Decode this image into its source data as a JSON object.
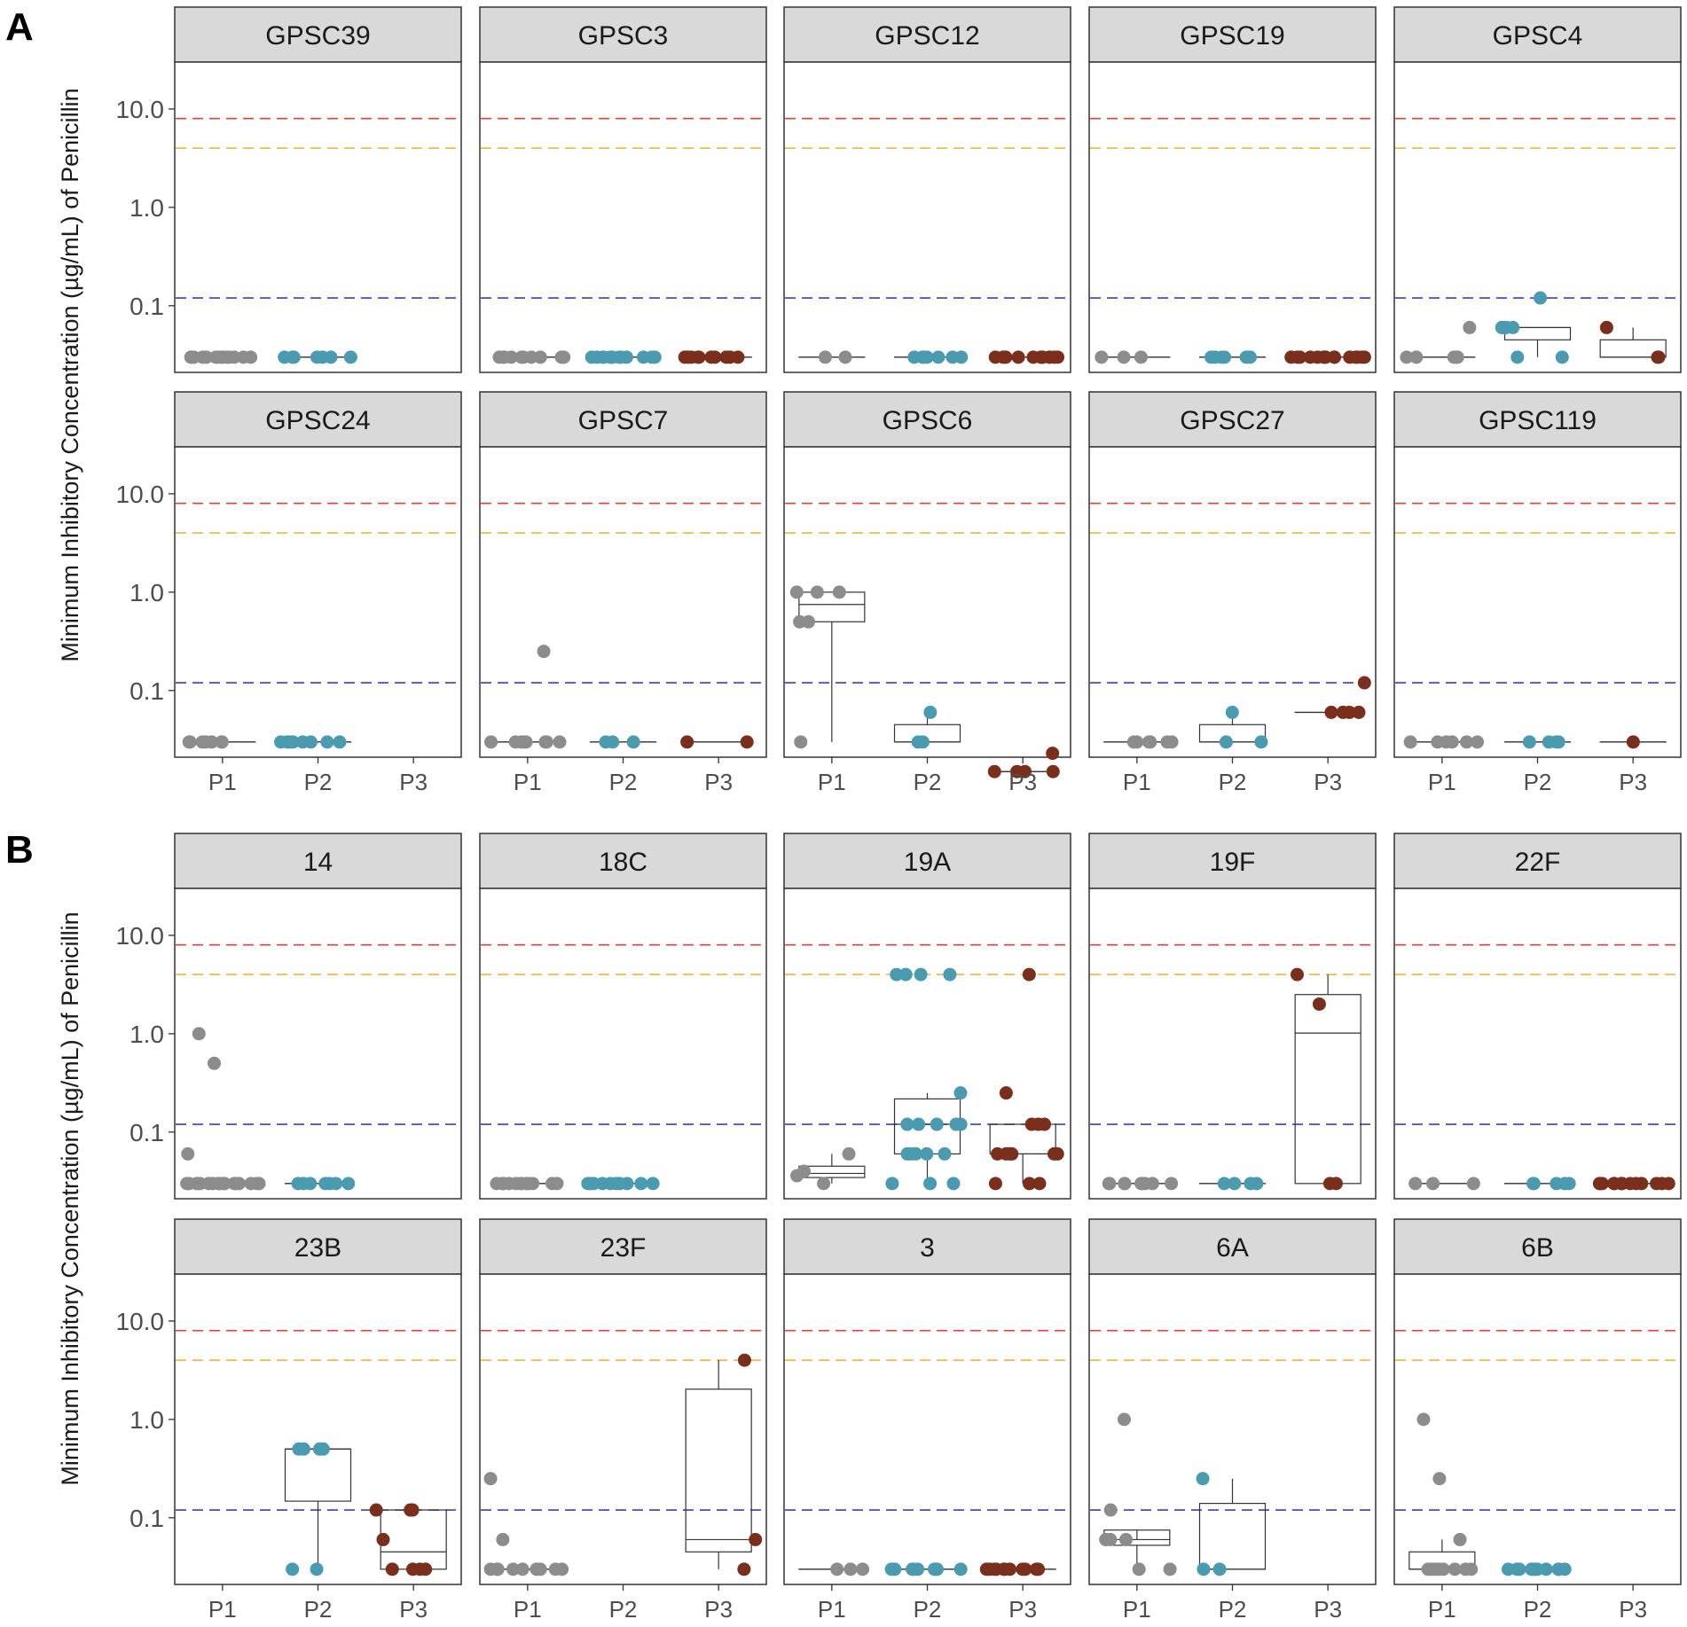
{
  "chart_data": {
    "type": "boxplot-faceted",
    "ylabel": "Minimum Inhibitory Concentration (µg/mL) of Penicillin",
    "yscale": "log10",
    "ylim": [
      0.021,
      30
    ],
    "y_ticks": [
      0.1,
      1.0,
      10.0
    ],
    "y_tick_labels": [
      "0.1",
      "1.0",
      "10.0"
    ],
    "x_categories": [
      "P1",
      "P2",
      "P3"
    ],
    "colors": {
      "P1": "#8c8c8c",
      "P2": "#4a9bb0",
      "P3": "#7a2e1c"
    },
    "reference_lines": [
      {
        "value": 8,
        "color": "#e0413a"
      },
      {
        "value": 4,
        "color": "#f0b43a"
      },
      {
        "value": 0.12,
        "color": "#3b3bc4"
      }
    ],
    "sections": [
      {
        "label": "A",
        "panels": [
          {
            "title": "GPSC39",
            "groups": {
              "P1": [
                0.03,
                0.03,
                0.03,
                0.03,
                0.03,
                0.03,
                0.03,
                0.03,
                0.03,
                0.03,
                0.03,
                0.03,
                0.03,
                0.03,
                0.03,
                0.03
              ],
              "P2": [
                0.03,
                0.03,
                0.03,
                0.03,
                0.03,
                0.03,
                0.03
              ],
              "P3": []
            }
          },
          {
            "title": "GPSC3",
            "groups": {
              "P1": [
                0.03,
                0.03,
                0.03,
                0.03,
                0.03,
                0.03,
                0.03,
                0.03,
                0.03,
                0.03,
                0.03
              ],
              "P2": [
                0.03,
                0.03,
                0.03,
                0.03,
                0.03,
                0.03,
                0.03,
                0.03,
                0.03,
                0.03,
                0.03,
                0.03,
                0.03
              ],
              "P3": [
                0.03,
                0.03,
                0.03,
                0.03,
                0.03,
                0.03,
                0.03,
                0.03,
                0.03,
                0.03
              ]
            }
          },
          {
            "title": "GPSC12",
            "groups": {
              "P1": [
                0.03,
                0.03
              ],
              "P2": [
                0.03,
                0.03,
                0.03,
                0.03,
                0.03,
                0.03,
                0.03,
                0.03
              ],
              "P3": [
                0.03,
                0.03,
                0.03,
                0.03,
                0.03,
                0.03,
                0.03,
                0.03,
                0.03,
                0.03,
                0.03,
                0.03,
                0.03
              ]
            }
          },
          {
            "title": "GPSC19",
            "groups": {
              "P1": [
                0.03,
                0.03,
                0.03
              ],
              "P2": [
                0.03,
                0.03,
                0.03,
                0.03,
                0.03,
                0.03
              ],
              "P3": [
                0.03,
                0.03,
                0.03,
                0.03,
                0.03,
                0.03,
                0.03,
                0.03,
                0.03,
                0.03,
                0.03,
                0.03,
                0.03,
                0.03,
                0.03
              ]
            }
          },
          {
            "title": "GPSC4",
            "groups": {
              "P1": [
                0.03,
                0.03,
                0.03,
                0.03,
                0.03,
                0.06
              ],
              "P2": [
                0.03,
                0.03,
                0.06,
                0.06,
                0.06,
                0.06,
                0.12
              ],
              "P3": [
                0.03,
                0.03,
                0.06
              ]
            }
          }
        ]
      },
      {
        "label": "",
        "panels": [
          {
            "title": "GPSC24",
            "groups": {
              "P1": [
                0.03,
                0.03,
                0.03,
                0.03,
                0.03,
                0.03,
                0.03
              ],
              "P2": [
                0.03,
                0.03,
                0.03,
                0.03,
                0.03,
                0.03,
                0.03,
                0.03,
                0.03
              ],
              "P3": []
            }
          },
          {
            "title": "GPSC7",
            "groups": {
              "P1": [
                0.03,
                0.03,
                0.03,
                0.03,
                0.03,
                0.03,
                0.03,
                0.03,
                0.25
              ],
              "P2": [
                0.03,
                0.03,
                0.03
              ],
              "P3": [
                0.03,
                0.03
              ]
            }
          },
          {
            "title": "GPSC6",
            "groups": {
              "P1": [
                0.03,
                0.5,
                0.5,
                1.0,
                1.0,
                1.0
              ],
              "P2": [
                0.03,
                0.03,
                0.06
              ],
              "P3": [
                0.015,
                0.015,
                0.015,
                0.015,
                0.023
              ]
            }
          },
          {
            "title": "GPSC27",
            "groups": {
              "P1": [
                0.03,
                0.03,
                0.03,
                0.03,
                0.03,
                0.03
              ],
              "P2": [
                0.03,
                0.03,
                0.06
              ],
              "P3": [
                0.06,
                0.06,
                0.06,
                0.06,
                0.12
              ]
            }
          },
          {
            "title": "GPSC119",
            "groups": {
              "P1": [
                0.03,
                0.03,
                0.03,
                0.03,
                0.03,
                0.03
              ],
              "P2": [
                0.03,
                0.03,
                0.03,
                0.03
              ],
              "P3": [
                0.03
              ]
            }
          }
        ]
      },
      {
        "label": "B",
        "panels": [
          {
            "title": "14",
            "groups": {
              "P1": [
                0.03,
                0.03,
                0.03,
                0.03,
                0.03,
                0.03,
                0.03,
                0.03,
                0.03,
                0.03,
                0.03,
                0.03,
                0.03,
                0.03,
                0.03,
                0.03,
                0.03,
                0.06,
                0.5,
                1.0
              ],
              "P2": [
                0.03,
                0.03,
                0.03,
                0.03,
                0.03,
                0.03,
                0.03
              ],
              "P3": []
            }
          },
          {
            "title": "18C",
            "groups": {
              "P1": [
                0.03,
                0.03,
                0.03,
                0.03,
                0.03,
                0.03,
                0.03,
                0.03,
                0.03,
                0.03,
                0.03,
                0.03
              ],
              "P2": [
                0.03,
                0.03,
                0.03,
                0.03,
                0.03,
                0.03,
                0.03,
                0.03,
                0.03,
                0.03
              ],
              "P3": []
            }
          },
          {
            "title": "19A",
            "groups": {
              "P1": [
                0.03,
                0.036,
                0.04,
                0.06
              ],
              "P2": [
                0.03,
                0.03,
                0.03,
                0.06,
                0.06,
                0.06,
                0.06,
                0.06,
                0.12,
                0.12,
                0.12,
                0.12,
                0.12,
                0.25,
                4,
                4,
                4,
                4
              ],
              "P3": [
                0.03,
                0.03,
                0.03,
                0.06,
                0.06,
                0.06,
                0.06,
                0.06,
                0.06,
                0.12,
                0.12,
                0.12,
                0.25,
                4
              ]
            }
          },
          {
            "title": "19F",
            "groups": {
              "P1": [
                0.03,
                0.03,
                0.03,
                0.03,
                0.03,
                0.03,
                0.03,
                0.03,
                0.03
              ],
              "P2": [
                0.03,
                0.03,
                0.03,
                0.03
              ],
              "P3": [
                0.03,
                0.03,
                2,
                4
              ]
            }
          },
          {
            "title": "22F",
            "groups": {
              "P1": [
                0.03,
                0.03,
                0.03
              ],
              "P2": [
                0.03,
                0.03,
                0.03,
                0.03,
                0.03
              ],
              "P3": [
                0.03,
                0.03,
                0.03,
                0.03,
                0.03,
                0.03,
                0.03,
                0.03,
                0.03,
                0.03,
                0.03,
                0.03,
                0.03,
                0.03
              ]
            }
          }
        ]
      },
      {
        "label": "",
        "panels": [
          {
            "title": "23B",
            "groups": {
              "P1": [],
              "P2": [
                0.03,
                0.03,
                0.5,
                0.5,
                0.5,
                0.5
              ],
              "P3": [
                0.03,
                0.03,
                0.03,
                0.03,
                0.06,
                0.12,
                0.12,
                0.12
              ]
            }
          },
          {
            "title": "23F",
            "groups": {
              "P1": [
                0.03,
                0.03,
                0.03,
                0.03,
                0.03,
                0.03,
                0.03,
                0.03,
                0.03,
                0.06,
                0.25
              ],
              "P2": [],
              "P3": [
                0.03,
                0.06,
                4
              ]
            }
          },
          {
            "title": "3",
            "groups": {
              "P1": [
                0.03,
                0.03,
                0.03
              ],
              "P2": [
                0.03,
                0.03,
                0.03,
                0.03,
                0.03,
                0.03,
                0.03,
                0.03,
                0.03
              ],
              "P3": [
                0.03,
                0.03,
                0.03,
                0.03,
                0.03,
                0.03,
                0.03,
                0.03,
                0.03,
                0.03,
                0.03
              ]
            }
          },
          {
            "title": "6A",
            "groups": {
              "P1": [
                0.03,
                0.03,
                0.06,
                0.06,
                0.06,
                0.06,
                0.12,
                1.0
              ],
              "P2": [
                0.03,
                0.03,
                0.25
              ],
              "P3": []
            }
          },
          {
            "title": "6B",
            "groups": {
              "P1": [
                0.03,
                0.03,
                0.03,
                0.03,
                0.03,
                0.03,
                0.03,
                0.03,
                0.06,
                0.25,
                1.0
              ],
              "P2": [
                0.03,
                0.03,
                0.03,
                0.03,
                0.03,
                0.03,
                0.03,
                0.03,
                0.03,
                0.03,
                0.03
              ],
              "P3": []
            }
          }
        ]
      }
    ]
  }
}
